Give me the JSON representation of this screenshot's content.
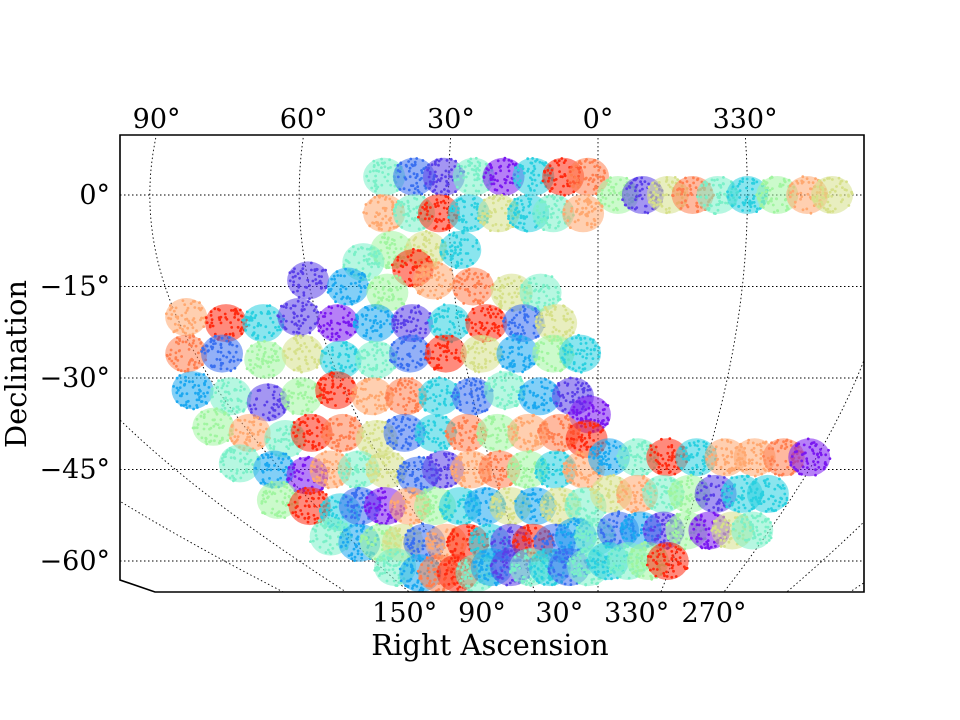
{
  "chart_data": {
    "type": "scatter",
    "title": "",
    "xlabel": "Right Ascension",
    "ylabel": "Declination",
    "top_ticks": [
      {
        "ra": 90,
        "label": "90°"
      },
      {
        "ra": 60,
        "label": "60°"
      },
      {
        "ra": 30,
        "label": "30°"
      },
      {
        "ra": 0,
        "label": "0°"
      },
      {
        "ra": 330,
        "label": "330°"
      }
    ],
    "bottom_ticks": [
      {
        "ra": 150,
        "label": "150°"
      },
      {
        "ra": 90,
        "label": "90°"
      },
      {
        "ra": 30,
        "label": "30°"
      },
      {
        "ra": 330,
        "label": "330°"
      },
      {
        "ra": 270,
        "label": "270°"
      }
    ],
    "y_ticks": [
      {
        "dec": 0,
        "label": "0°"
      },
      {
        "dec": -15,
        "label": "−15°"
      },
      {
        "dec": -30,
        "label": "−30°"
      },
      {
        "dec": -45,
        "label": "−45°"
      },
      {
        "dec": -60,
        "label": "−60°"
      }
    ],
    "dec_range": [
      -65,
      6
    ],
    "grid": true,
    "colormap": "rainbow",
    "palette": [
      "#ff2a10",
      "#ff7f50",
      "#ffa870",
      "#d6e08a",
      "#a0f5a0",
      "#7af0c8",
      "#2ad0e0",
      "#1ca8f0",
      "#3a70f0",
      "#5a40e8",
      "#7a18f0"
    ],
    "series": [
      {
        "values": [
          {
            "ra": 43,
            "dec": 3,
            "c": 5
          },
          {
            "ra": 37,
            "dec": 3,
            "c": 8
          },
          {
            "ra": 31,
            "dec": 3,
            "c": 9
          },
          {
            "ra": 25,
            "dec": 3,
            "c": 5
          },
          {
            "ra": 19,
            "dec": 3,
            "c": 10
          },
          {
            "ra": 13,
            "dec": 3,
            "c": 6
          },
          {
            "ra": 7,
            "dec": 3,
            "c": 0
          },
          {
            "ra": 2,
            "dec": 3,
            "c": 1
          },
          {
            "ra": 356,
            "dec": 0,
            "c": 4
          },
          {
            "ra": 351,
            "dec": 0,
            "c": 9
          },
          {
            "ra": 346,
            "dec": 0,
            "c": 3
          },
          {
            "ra": 341,
            "dec": 0,
            "c": 1
          },
          {
            "ra": 336,
            "dec": 0,
            "c": 5
          },
          {
            "ra": 330,
            "dec": 0,
            "c": 6
          },
          {
            "ra": 324,
            "dec": 0,
            "c": 4
          },
          {
            "ra": 318,
            "dec": 0,
            "c": 2
          },
          {
            "ra": 313,
            "dec": 0,
            "c": 3
          },
          {
            "ra": 43,
            "dec": -3,
            "c": 2
          },
          {
            "ra": 37,
            "dec": -3,
            "c": 5
          },
          {
            "ra": 32,
            "dec": -3,
            "c": 0
          },
          {
            "ra": 26,
            "dec": -3,
            "c": 6
          },
          {
            "ra": 20,
            "dec": -3,
            "c": 3
          },
          {
            "ra": 14,
            "dec": -3,
            "c": 6
          },
          {
            "ra": 9,
            "dec": -3,
            "c": 5
          },
          {
            "ra": 3,
            "dec": -3,
            "c": 2
          },
          {
            "ra": 42,
            "dec": -9,
            "c": 4
          },
          {
            "ra": 35,
            "dec": -9,
            "c": 3
          },
          {
            "ra": 28,
            "dec": -9,
            "c": 6
          },
          {
            "ra": 48,
            "dec": -11,
            "c": 5
          },
          {
            "ra": 38,
            "dec": -12,
            "c": 0
          },
          {
            "ra": 60,
            "dec": -14,
            "c": 9
          },
          {
            "ra": 52,
            "dec": -15,
            "c": 7
          },
          {
            "ra": 44,
            "dec": -16,
            "c": 4
          },
          {
            "ra": 34,
            "dec": -14,
            "c": 2
          },
          {
            "ra": 26,
            "dec": -15,
            "c": 1
          },
          {
            "ra": 18,
            "dec": -16,
            "c": 3
          },
          {
            "ra": 12,
            "dec": -16,
            "c": 5
          },
          {
            "ra": 88,
            "dec": -20,
            "c": 2
          },
          {
            "ra": 80,
            "dec": -21,
            "c": 0
          },
          {
            "ra": 72,
            "dec": -21,
            "c": 6
          },
          {
            "ra": 64,
            "dec": -20,
            "c": 9
          },
          {
            "ra": 56,
            "dec": -21,
            "c": 10
          },
          {
            "ra": 48,
            "dec": -21,
            "c": 7
          },
          {
            "ra": 40,
            "dec": -21,
            "c": 9
          },
          {
            "ra": 32,
            "dec": -21,
            "c": 6
          },
          {
            "ra": 24,
            "dec": -21,
            "c": 0
          },
          {
            "ra": 16,
            "dec": -21,
            "c": 8
          },
          {
            "ra": 9,
            "dec": -21,
            "c": 3
          },
          {
            "ra": 92,
            "dec": -26,
            "c": 1
          },
          {
            "ra": 84,
            "dec": -26,
            "c": 8
          },
          {
            "ra": 75,
            "dec": -27,
            "c": 4
          },
          {
            "ra": 66,
            "dec": -26,
            "c": 3
          },
          {
            "ra": 58,
            "dec": -27,
            "c": 6
          },
          {
            "ra": 50,
            "dec": -27,
            "c": 5
          },
          {
            "ra": 42,
            "dec": -26,
            "c": 8
          },
          {
            "ra": 34,
            "dec": -26,
            "c": 0
          },
          {
            "ra": 26,
            "dec": -26,
            "c": 3
          },
          {
            "ra": 18,
            "dec": -26,
            "c": 7
          },
          {
            "ra": 10,
            "dec": -26,
            "c": 4
          },
          {
            "ra": 4,
            "dec": -26,
            "c": 6
          },
          {
            "ra": 96,
            "dec": -32,
            "c": 7
          },
          {
            "ra": 88,
            "dec": -33,
            "c": 5
          },
          {
            "ra": 80,
            "dec": -34,
            "c": 9
          },
          {
            "ra": 71,
            "dec": -33,
            "c": 4
          },
          {
            "ra": 62,
            "dec": -32,
            "c": 0
          },
          {
            "ra": 54,
            "dec": -33,
            "c": 2
          },
          {
            "ra": 46,
            "dec": -33,
            "c": 1
          },
          {
            "ra": 38,
            "dec": -33,
            "c": 6
          },
          {
            "ra": 30,
            "dec": -33,
            "c": 8
          },
          {
            "ra": 22,
            "dec": -32,
            "c": 5
          },
          {
            "ra": 14,
            "dec": -33,
            "c": 7
          },
          {
            "ra": 6,
            "dec": -33,
            "c": 9
          },
          {
            "ra": 2,
            "dec": -36,
            "c": 10
          },
          {
            "ra": 98,
            "dec": -38,
            "c": 4
          },
          {
            "ra": 90,
            "dec": -39,
            "c": 2
          },
          {
            "ra": 82,
            "dec": -40,
            "c": 5
          },
          {
            "ra": 74,
            "dec": -39,
            "c": 0
          },
          {
            "ra": 66,
            "dec": -39,
            "c": 1
          },
          {
            "ra": 58,
            "dec": -40,
            "c": 3
          },
          {
            "ra": 50,
            "dec": -39,
            "c": 8
          },
          {
            "ra": 42,
            "dec": -39,
            "c": 6
          },
          {
            "ra": 34,
            "dec": -39,
            "c": 1
          },
          {
            "ra": 26,
            "dec": -39,
            "c": 4
          },
          {
            "ra": 18,
            "dec": -39,
            "c": 2
          },
          {
            "ra": 10,
            "dec": -39,
            "c": 1
          },
          {
            "ra": 3,
            "dec": -40,
            "c": 0
          },
          {
            "ra": 100,
            "dec": -44,
            "c": 5
          },
          {
            "ra": 92,
            "dec": -45,
            "c": 7
          },
          {
            "ra": 84,
            "dec": -46,
            "c": 10
          },
          {
            "ra": 76,
            "dec": -45,
            "c": 2
          },
          {
            "ra": 68,
            "dec": -45,
            "c": 5
          },
          {
            "ra": 60,
            "dec": -45,
            "c": 3
          },
          {
            "ra": 52,
            "dec": -46,
            "c": 8
          },
          {
            "ra": 44,
            "dec": -45,
            "c": 9
          },
          {
            "ra": 36,
            "dec": -45,
            "c": 2
          },
          {
            "ra": 28,
            "dec": -45,
            "c": 1
          },
          {
            "ra": 20,
            "dec": -45,
            "c": 4
          },
          {
            "ra": 12,
            "dec": -45,
            "c": 6
          },
          {
            "ra": 4,
            "dec": -45,
            "c": 2
          },
          {
            "ra": 357,
            "dec": -43,
            "c": 7
          },
          {
            "ra": 349,
            "dec": -43,
            "c": 5
          },
          {
            "ra": 341,
            "dec": -43,
            "c": 0
          },
          {
            "ra": 333,
            "dec": -43,
            "c": 6
          },
          {
            "ra": 325,
            "dec": -43,
            "c": 2
          },
          {
            "ra": 317,
            "dec": -43,
            "c": 2
          },
          {
            "ra": 309,
            "dec": -43,
            "c": 1
          },
          {
            "ra": 302,
            "dec": -43,
            "c": 10
          },
          {
            "ra": 100,
            "dec": -50,
            "c": 4
          },
          {
            "ra": 92,
            "dec": -51,
            "c": 0
          },
          {
            "ra": 84,
            "dec": -52,
            "c": 6
          },
          {
            "ra": 76,
            "dec": -51,
            "c": 8
          },
          {
            "ra": 68,
            "dec": -51,
            "c": 10
          },
          {
            "ra": 60,
            "dec": -51,
            "c": 2
          },
          {
            "ra": 52,
            "dec": -51,
            "c": 4
          },
          {
            "ra": 44,
            "dec": -51,
            "c": 6
          },
          {
            "ra": 36,
            "dec": -51,
            "c": 7
          },
          {
            "ra": 28,
            "dec": -51,
            "c": 3
          },
          {
            "ra": 20,
            "dec": -51,
            "c": 7
          },
          {
            "ra": 12,
            "dec": -51,
            "c": 3
          },
          {
            "ra": 4,
            "dec": -51,
            "c": 5
          },
          {
            "ra": 356,
            "dec": -49,
            "c": 3
          },
          {
            "ra": 348,
            "dec": -49,
            "c": 2
          },
          {
            "ra": 340,
            "dec": -49,
            "c": 5
          },
          {
            "ra": 332,
            "dec": -49,
            "c": 4
          },
          {
            "ra": 324,
            "dec": -49,
            "c": 9
          },
          {
            "ra": 316,
            "dec": -49,
            "c": 6
          },
          {
            "ra": 308,
            "dec": -49,
            "c": 6
          },
          {
            "ra": 96,
            "dec": -56,
            "c": 5
          },
          {
            "ra": 88,
            "dec": -57,
            "c": 7
          },
          {
            "ra": 80,
            "dec": -57,
            "c": 4
          },
          {
            "ra": 72,
            "dec": -57,
            "c": 3
          },
          {
            "ra": 64,
            "dec": -57,
            "c": 8
          },
          {
            "ra": 56,
            "dec": -57,
            "c": 2
          },
          {
            "ra": 48,
            "dec": -57,
            "c": 0
          },
          {
            "ra": 40,
            "dec": -57,
            "c": 6
          },
          {
            "ra": 32,
            "dec": -57,
            "c": 9
          },
          {
            "ra": 24,
            "dec": -57,
            "c": 0
          },
          {
            "ra": 16,
            "dec": -57,
            "c": 8
          },
          {
            "ra": 8,
            "dec": -56,
            "c": 7
          },
          {
            "ra": 1,
            "dec": -56,
            "c": 5
          },
          {
            "ra": 353,
            "dec": -55,
            "c": 8
          },
          {
            "ra": 345,
            "dec": -55,
            "c": 7
          },
          {
            "ra": 337,
            "dec": -55,
            "c": 9
          },
          {
            "ra": 329,
            "dec": -55,
            "c": 4
          },
          {
            "ra": 321,
            "dec": -55,
            "c": 10
          },
          {
            "ra": 313,
            "dec": -55,
            "c": 3
          },
          {
            "ra": 306,
            "dec": -55,
            "c": 5
          },
          {
            "ra": 84,
            "dec": -61,
            "c": 5
          },
          {
            "ra": 76,
            "dec": -62,
            "c": 7
          },
          {
            "ra": 68,
            "dec": -62,
            "c": 1
          },
          {
            "ra": 60,
            "dec": -62,
            "c": 0
          },
          {
            "ra": 52,
            "dec": -62,
            "c": 5
          },
          {
            "ra": 44,
            "dec": -61,
            "c": 7
          },
          {
            "ra": 36,
            "dec": -61,
            "c": 9
          },
          {
            "ra": 28,
            "dec": -61,
            "c": 5
          },
          {
            "ra": 20,
            "dec": -61,
            "c": 6
          },
          {
            "ra": 12,
            "dec": -61,
            "c": 8
          },
          {
            "ra": 4,
            "dec": -61,
            "c": 5
          },
          {
            "ra": 356,
            "dec": -60,
            "c": 6
          },
          {
            "ra": 348,
            "dec": -60,
            "c": 5
          },
          {
            "ra": 340,
            "dec": -60,
            "c": 4
          },
          {
            "ra": 332,
            "dec": -60,
            "c": 0
          }
        ]
      }
    ]
  }
}
